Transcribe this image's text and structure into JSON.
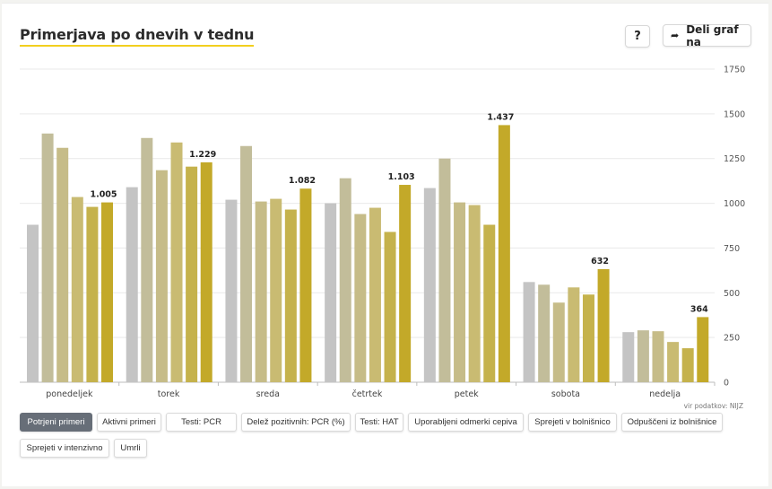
{
  "header": {
    "title": "Primerjava po dnevih v tednu",
    "help_label": "?",
    "share_label": "Deli graf na",
    "share_icon": "share-arrow-icon"
  },
  "source_note": "vir podatkov: NIJZ",
  "tabs": [
    {
      "label": "Potrjeni primeri",
      "active": true
    },
    {
      "label": "Aktivni primeri",
      "active": false
    },
    {
      "label": "Testi: PCR",
      "active": false
    },
    {
      "label": "Delež pozitivnih: PCR (%)",
      "active": false
    },
    {
      "label": "Testi: HAT",
      "active": false
    },
    {
      "label": "Uporabljeni odmerki cepiva",
      "active": false
    },
    {
      "label": "Sprejeti v bolnišnico",
      "active": false
    },
    {
      "label": "Odpuščeni iz bolnišnice",
      "active": false
    },
    {
      "label": "Sprejeti v intenzivno",
      "active": false
    },
    {
      "label": "Umrli",
      "active": false
    }
  ],
  "chart_data": {
    "type": "bar",
    "categories": [
      "ponedeljek",
      "torek",
      "sreda",
      "četrtek",
      "petek",
      "sobota",
      "nedelja"
    ],
    "series": [
      {
        "color": "#c4c4c4",
        "values": [
          880,
          1090,
          1020,
          1000,
          1085,
          560,
          280
        ]
      },
      {
        "color": "#c2bd9a",
        "values": [
          1390,
          1365,
          1320,
          1140,
          1250,
          545,
          290
        ]
      },
      {
        "color": "#c6bc88",
        "values": [
          1310,
          1185,
          1010,
          940,
          1005,
          445,
          285
        ]
      },
      {
        "color": "#c9bb72",
        "values": [
          1035,
          1340,
          1025,
          975,
          990,
          530,
          225
        ]
      },
      {
        "color": "#c5b24c",
        "values": [
          980,
          1205,
          965,
          840,
          880,
          490,
          190
        ]
      },
      {
        "color": "#c3a929",
        "values": [
          1005,
          1229,
          1082,
          1103,
          1437,
          632,
          364
        ]
      }
    ],
    "data_labels": [
      "1.005",
      "1.229",
      "1.082",
      "1.103",
      "1.437",
      "632",
      "364"
    ],
    "y_ticks": [
      0,
      250,
      500,
      750,
      1000,
      1250,
      1500,
      1750
    ],
    "ylim": [
      0,
      1750
    ],
    "grid": true,
    "y_axis_position": "right"
  }
}
